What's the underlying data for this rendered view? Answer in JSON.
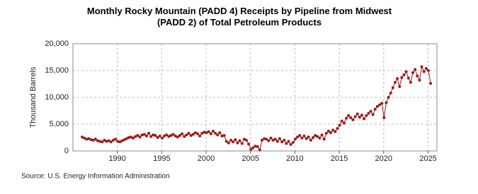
{
  "chart_data": {
    "type": "line",
    "title": "Monthly Rocky Mountain (PADD 4) Receipts by Pipeline from Midwest (PADD 2) of Total Petroleum Products",
    "ylabel": "Thousand Barrels",
    "source": "Source: U.S. Energy Information Administration",
    "xlim": [
      1985,
      2026
    ],
    "xticks": [
      1990,
      1995,
      2000,
      2005,
      2010,
      2015,
      2020,
      2025
    ],
    "ylim": [
      0,
      20000
    ],
    "yticks": [
      {
        "value": 0,
        "label": "0"
      },
      {
        "value": 5000,
        "label": "5,000"
      },
      {
        "value": 10000,
        "label": "10,000"
      },
      {
        "value": 15000,
        "label": "15,000"
      },
      {
        "value": 20000,
        "label": "20,000"
      }
    ],
    "grid": true,
    "x": [
      1986.04,
      1986.29,
      1986.54,
      1986.79,
      1987.04,
      1987.29,
      1987.54,
      1987.79,
      1988.04,
      1988.29,
      1988.54,
      1988.79,
      1989.04,
      1989.29,
      1989.54,
      1989.79,
      1990.04,
      1990.29,
      1990.54,
      1990.79,
      1991.04,
      1991.29,
      1991.54,
      1991.79,
      1992.04,
      1992.29,
      1992.54,
      1992.79,
      1993.04,
      1993.29,
      1993.54,
      1993.79,
      1994.04,
      1994.29,
      1994.54,
      1994.79,
      1995.04,
      1995.29,
      1995.54,
      1995.79,
      1996.04,
      1996.29,
      1996.54,
      1996.79,
      1997.04,
      1997.29,
      1997.54,
      1997.79,
      1998.04,
      1998.29,
      1998.54,
      1998.79,
      1999.04,
      1999.29,
      1999.54,
      1999.79,
      2000.04,
      2000.29,
      2000.54,
      2000.79,
      2001.04,
      2001.29,
      2001.54,
      2001.79,
      2002.04,
      2002.29,
      2002.54,
      2002.79,
      2003.04,
      2003.29,
      2003.54,
      2003.79,
      2004.04,
      2004.29,
      2004.54,
      2004.79,
      2005.04,
      2005.29,
      2005.54,
      2005.79,
      2006.04,
      2006.29,
      2006.54,
      2006.79,
      2007.04,
      2007.29,
      2007.54,
      2007.79,
      2008.04,
      2008.29,
      2008.54,
      2008.79,
      2009.04,
      2009.29,
      2009.54,
      2009.79,
      2010.04,
      2010.29,
      2010.54,
      2010.79,
      2011.04,
      2011.29,
      2011.54,
      2011.79,
      2012.04,
      2012.29,
      2012.54,
      2012.79,
      2013.04,
      2013.29,
      2013.54,
      2013.79,
      2014.04,
      2014.29,
      2014.54,
      2014.79,
      2015.04,
      2015.29,
      2015.54,
      2015.79,
      2016.04,
      2016.29,
      2016.54,
      2016.79,
      2017.04,
      2017.29,
      2017.54,
      2017.79,
      2018.04,
      2018.29,
      2018.54,
      2018.79,
      2019.04,
      2019.29,
      2019.54,
      2019.79,
      2020.04,
      2020.29,
      2020.54,
      2020.79,
      2021.04,
      2021.29,
      2021.54,
      2021.79,
      2022.04,
      2022.29,
      2022.54,
      2022.79,
      2023.04,
      2023.29,
      2023.54,
      2023.79,
      2024.04,
      2024.29,
      2024.54,
      2024.79,
      2025.04,
      2025.29
    ],
    "series": [
      {
        "color": "#9b1b1b",
        "values": [
          2600,
          2400,
          2200,
          2300,
          2100,
          2000,
          2200,
          1900,
          1800,
          1700,
          2000,
          1800,
          1900,
          1700,
          2000,
          2200,
          1800,
          1700,
          1900,
          2100,
          2300,
          2500,
          2600,
          2400,
          2700,
          2900,
          2600,
          3000,
          3100,
          2800,
          3300,
          2700,
          3000,
          2900,
          2500,
          2800,
          2400,
          2800,
          3000,
          2700,
          2900,
          3100,
          2800,
          2600,
          2900,
          3200,
          2700,
          3000,
          3300,
          2900,
          3100,
          3400,
          3200,
          2800,
          3300,
          3500,
          3400,
          3600,
          3200,
          3700,
          3300,
          3000,
          3400,
          2800,
          2900,
          1800,
          1500,
          2000,
          1700,
          2100,
          1500,
          1900,
          1400,
          2200,
          2000,
          1300,
          300,
          600,
          900,
          800,
          200,
          2000,
          2300,
          2200,
          1900,
          2400,
          2000,
          2200,
          1800,
          2300,
          1700,
          2000,
          1400,
          1800,
          1200,
          1600,
          2200,
          2600,
          2900,
          2400,
          2800,
          2300,
          2600,
          2000,
          2500,
          2900,
          2700,
          2400,
          3000,
          2200,
          3300,
          3700,
          3400,
          3900,
          3600,
          4200,
          4800,
          5600,
          5200,
          6100,
          6600,
          6200,
          5800,
          6400,
          6900,
          6300,
          6700,
          6000,
          6600,
          7000,
          7400,
          6800,
          7800,
          8300,
          8600,
          8900,
          6200,
          9000,
          10000,
          10800,
          11800,
          12800,
          13500,
          12000,
          13700,
          14200,
          14800,
          13600,
          12800,
          14600,
          15200,
          14000,
          13200,
          15700,
          14800,
          15400,
          15000,
          12600
        ]
      }
    ]
  }
}
